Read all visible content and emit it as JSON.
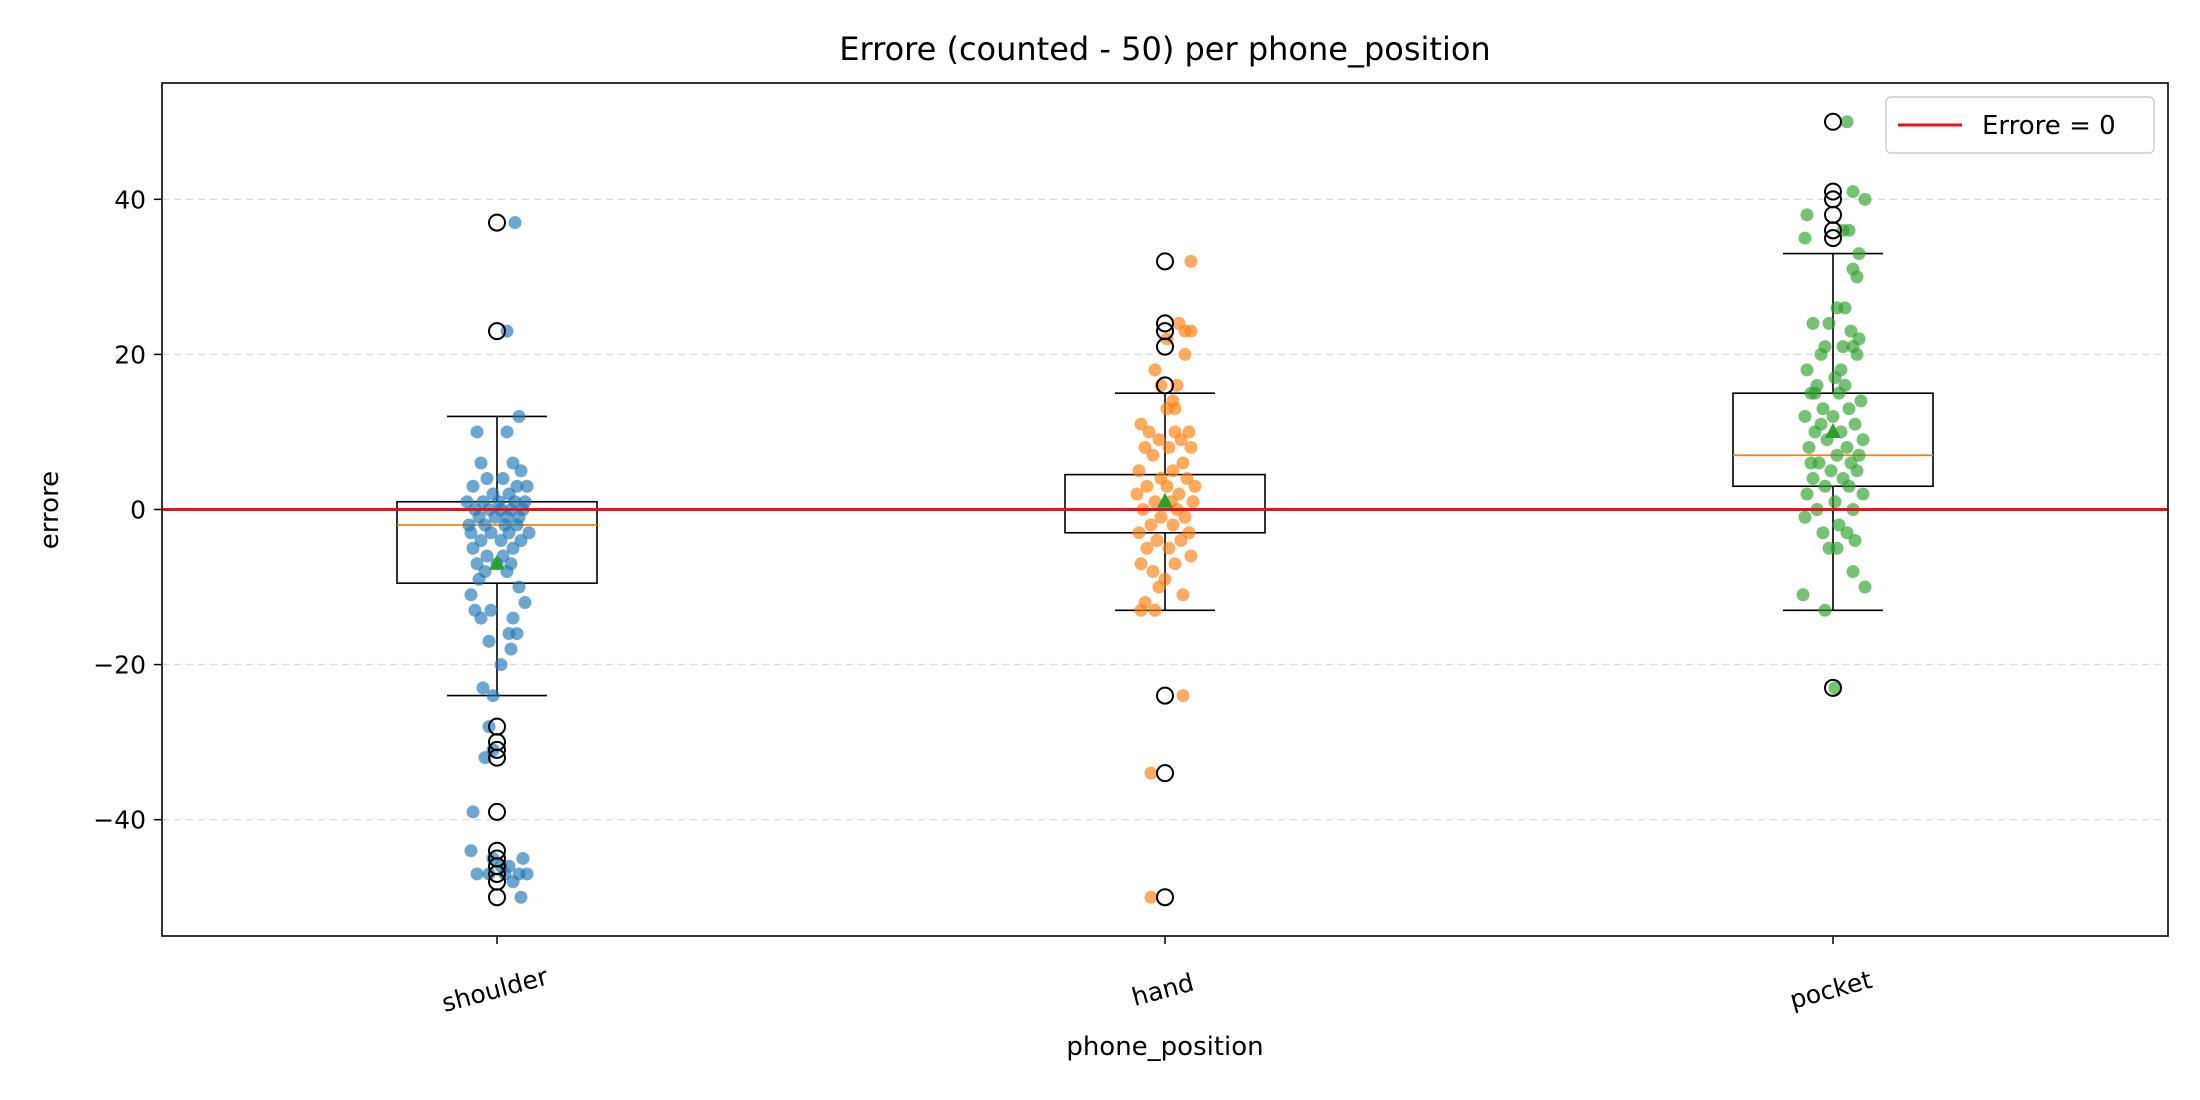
{
  "chart_data": {
    "type": "box",
    "title": "Errore (counted - 50) per phone_position",
    "xlabel": "phone_position",
    "ylabel": "errore",
    "ylim": [
      -55,
      55
    ],
    "yticks": [
      -40,
      -20,
      0,
      20,
      40
    ],
    "ytick_labels": [
      "−40",
      "−20",
      "0",
      "20",
      "40"
    ],
    "grid": "y dashed",
    "legend_position": "top-right",
    "reference_line": {
      "y": 0,
      "label": "Errore = 0",
      "color": "#e8121c"
    },
    "box_color": "#000000",
    "median_color": "#ff7f0e",
    "mean_marker_color": "#2ca02c",
    "categories": [
      "shoulder",
      "hand",
      "pocket"
    ],
    "groups": [
      {
        "name": "shoulder",
        "color": "#1f77b4",
        "whisker_low": -24,
        "q1": -9.5,
        "median": -2,
        "q3": 1,
        "whisker_high": 12,
        "mean": -7,
        "outliers": [
          37,
          23,
          -28,
          -30,
          -31,
          -32,
          -39,
          -44,
          -45,
          -46,
          -47,
          -48,
          -50
        ],
        "points": [
          [
            -0.1,
            10
          ],
          [
            0.05,
            10
          ],
          [
            -0.08,
            6
          ],
          [
            0.08,
            6
          ],
          [
            0.12,
            5
          ],
          [
            -0.05,
            4
          ],
          [
            0.03,
            4
          ],
          [
            -0.12,
            3
          ],
          [
            0.1,
            3
          ],
          [
            0.15,
            3
          ],
          [
            -0.02,
            2
          ],
          [
            0.06,
            2
          ],
          [
            -0.15,
            1
          ],
          [
            -0.07,
            1
          ],
          [
            0.01,
            1
          ],
          [
            0.09,
            1
          ],
          [
            0.14,
            1
          ],
          [
            -0.11,
            0
          ],
          [
            -0.04,
            0
          ],
          [
            0.02,
            0
          ],
          [
            0.07,
            0
          ],
          [
            0.13,
            0
          ],
          [
            -0.09,
            -1
          ],
          [
            -0.01,
            -1
          ],
          [
            0.05,
            -1
          ],
          [
            0.11,
            -1
          ],
          [
            -0.14,
            -2
          ],
          [
            -0.06,
            -2
          ],
          [
            0.04,
            -2
          ],
          [
            0.1,
            -2
          ],
          [
            -0.13,
            -3
          ],
          [
            -0.03,
            -3
          ],
          [
            0.06,
            -3
          ],
          [
            0.16,
            -3
          ],
          [
            -0.08,
            -4
          ],
          [
            0.02,
            -4
          ],
          [
            0.12,
            -4
          ],
          [
            -0.12,
            -5
          ],
          [
            0.08,
            -5
          ],
          [
            -0.05,
            -6
          ],
          [
            0.03,
            -6
          ],
          [
            -0.1,
            -7
          ],
          [
            0.0,
            -7
          ],
          [
            0.07,
            -7
          ],
          [
            -0.06,
            -8
          ],
          [
            0.05,
            -8
          ],
          [
            -0.09,
            -9
          ],
          [
            0.11,
            -10
          ],
          [
            -0.13,
            -11
          ],
          [
            0.14,
            -12
          ],
          [
            -0.11,
            -13
          ],
          [
            -0.03,
            -13
          ],
          [
            0.08,
            -14
          ],
          [
            -0.08,
            -14
          ],
          [
            0.06,
            -16
          ],
          [
            0.1,
            -16
          ],
          [
            -0.04,
            -17
          ],
          [
            0.07,
            -18
          ],
          [
            0.02,
            -20
          ],
          [
            -0.02,
            -24
          ],
          [
            -0.07,
            -23
          ],
          [
            -0.04,
            -28
          ],
          [
            -0.02,
            -31
          ],
          [
            -0.06,
            -32
          ],
          [
            -0.12,
            -39
          ],
          [
            -0.13,
            -44
          ],
          [
            -0.1,
            -47
          ],
          [
            -0.04,
            -47
          ],
          [
            0.04,
            -47
          ],
          [
            0.11,
            -47
          ],
          [
            0.15,
            -47
          ],
          [
            0.13,
            -45
          ],
          [
            0.12,
            -50
          ],
          [
            0.08,
            -48
          ],
          [
            0.09,
            37
          ],
          [
            0.05,
            23
          ],
          [
            0.11,
            12
          ],
          [
            0.02,
            -46
          ],
          [
            -0.02,
            -45
          ],
          [
            0.06,
            -46
          ]
        ]
      },
      {
        "name": "hand",
        "color": "#ff7f0e",
        "whisker_low": -13,
        "q1": -3,
        "median": 0,
        "q3": 4.5,
        "whisker_high": 15,
        "mean": 1,
        "outliers": [
          32,
          24,
          23,
          21,
          16,
          -24,
          -34,
          -50
        ],
        "points": [
          [
            -0.12,
            11
          ],
          [
            -0.08,
            10
          ],
          [
            0.05,
            10
          ],
          [
            0.12,
            10
          ],
          [
            0.08,
            9
          ],
          [
            -0.03,
            9
          ],
          [
            0.02,
            8
          ],
          [
            -0.1,
            8
          ],
          [
            0.13,
            8
          ],
          [
            -0.06,
            7
          ],
          [
            0.09,
            6
          ],
          [
            -0.13,
            5
          ],
          [
            0.04,
            5
          ],
          [
            -0.02,
            4
          ],
          [
            0.11,
            4
          ],
          [
            0.15,
            3
          ],
          [
            -0.09,
            3
          ],
          [
            0.01,
            3
          ],
          [
            -0.14,
            2
          ],
          [
            0.07,
            2
          ],
          [
            -0.05,
            1
          ],
          [
            0.03,
            1
          ],
          [
            0.14,
            1
          ],
          [
            -0.11,
            0
          ],
          [
            0.06,
            0
          ],
          [
            -0.02,
            -1
          ],
          [
            0.1,
            -1
          ],
          [
            -0.07,
            -2
          ],
          [
            0.04,
            -2
          ],
          [
            0.12,
            -3
          ],
          [
            -0.13,
            -3
          ],
          [
            -0.04,
            -4
          ],
          [
            0.08,
            -4
          ],
          [
            -0.09,
            -5
          ],
          [
            0.02,
            -5
          ],
          [
            0.13,
            -6
          ],
          [
            -0.12,
            -7
          ],
          [
            0.05,
            -7
          ],
          [
            -0.06,
            -8
          ],
          [
            0.0,
            -9
          ],
          [
            -0.03,
            -10
          ],
          [
            0.09,
            -11
          ],
          [
            -0.1,
            -12
          ],
          [
            -0.05,
            -13
          ],
          [
            -0.12,
            -13
          ],
          [
            0.1,
            23
          ],
          [
            0.13,
            23
          ],
          [
            0.07,
            24
          ],
          [
            0.13,
            32
          ],
          [
            -0.07,
            -34
          ],
          [
            0.09,
            -24
          ],
          [
            -0.07,
            -50
          ],
          [
            0.05,
            13
          ],
          [
            0.01,
            13
          ],
          [
            -0.02,
            16
          ],
          [
            0.06,
            16
          ],
          [
            0.04,
            14
          ],
          [
            0.1,
            20
          ],
          [
            -0.05,
            18
          ],
          [
            0.01,
            22
          ]
        ]
      },
      {
        "name": "pocket",
        "color": "#2ca02c",
        "whisker_low": -13,
        "q1": 3,
        "median": 7,
        "q3": 15,
        "whisker_high": 33,
        "mean": 10,
        "outliers": [
          50,
          41,
          40,
          38,
          36,
          35,
          -23
        ],
        "points": [
          [
            0.07,
            50
          ],
          [
            0.1,
            41
          ],
          [
            0.16,
            40
          ],
          [
            -0.13,
            38
          ],
          [
            0.05,
            36
          ],
          [
            -0.14,
            35
          ],
          [
            0.08,
            36
          ],
          [
            0.13,
            33
          ],
          [
            0.1,
            31
          ],
          [
            0.12,
            30
          ],
          [
            -0.1,
            24
          ],
          [
            0.02,
            26
          ],
          [
            -0.02,
            24
          ],
          [
            0.09,
            23
          ],
          [
            0.13,
            22
          ],
          [
            -0.04,
            21
          ],
          [
            0.05,
            21
          ],
          [
            0.1,
            21
          ],
          [
            -0.06,
            20
          ],
          [
            -0.13,
            18
          ],
          [
            0.01,
            17
          ],
          [
            -0.08,
            16
          ],
          [
            0.06,
            16
          ],
          [
            -0.11,
            15
          ],
          [
            0.03,
            15
          ],
          [
            0.14,
            14
          ],
          [
            -0.05,
            13
          ],
          [
            0.08,
            13
          ],
          [
            -0.14,
            12
          ],
          [
            0.0,
            12
          ],
          [
            0.11,
            11
          ],
          [
            -0.09,
            10
          ],
          [
            0.04,
            10
          ],
          [
            0.15,
            9
          ],
          [
            -0.03,
            9
          ],
          [
            0.07,
            8
          ],
          [
            -0.12,
            8
          ],
          [
            0.02,
            7
          ],
          [
            0.13,
            7
          ],
          [
            -0.07,
            6
          ],
          [
            0.09,
            6
          ],
          [
            -0.01,
            5
          ],
          [
            0.12,
            5
          ],
          [
            -0.1,
            4
          ],
          [
            0.05,
            4
          ],
          [
            -0.04,
            3
          ],
          [
            0.08,
            3
          ],
          [
            0.15,
            2
          ],
          [
            -0.13,
            2
          ],
          [
            0.01,
            1
          ],
          [
            -0.08,
            0
          ],
          [
            0.1,
            0
          ],
          [
            -0.14,
            -1
          ],
          [
            0.03,
            -2
          ],
          [
            0.07,
            -3
          ],
          [
            -0.05,
            -3
          ],
          [
            0.11,
            -4
          ],
          [
            -0.02,
            -5
          ],
          [
            0.02,
            -5
          ],
          [
            0.1,
            -8
          ],
          [
            0.16,
            -10
          ],
          [
            -0.15,
            -11
          ],
          [
            -0.04,
            -13
          ],
          [
            0.01,
            -23
          ],
          [
            -0.06,
            11
          ],
          [
            0.06,
            26
          ],
          [
            -0.09,
            15
          ],
          [
            0.12,
            20
          ],
          [
            -0.11,
            6
          ],
          [
            0.04,
            18
          ]
        ]
      }
    ]
  }
}
